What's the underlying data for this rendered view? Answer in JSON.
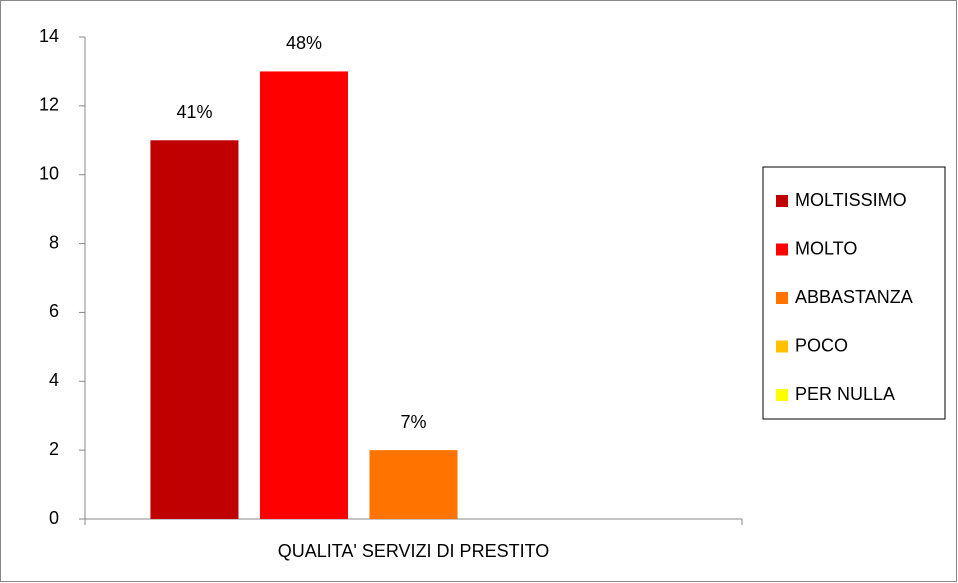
{
  "chart_data": {
    "type": "bar",
    "categories": [
      "QUALITA' SERVIZI DI PRESTITO"
    ],
    "series": [
      {
        "name": "MOLTISSIMO",
        "color": "#c00000",
        "values": [
          11
        ],
        "value_labels": [
          "41%"
        ]
      },
      {
        "name": "MOLTO",
        "color": "#ff0000",
        "values": [
          13
        ],
        "value_labels": [
          "48%"
        ]
      },
      {
        "name": "ABBASTANZA",
        "color": "#ff7300",
        "values": [
          2
        ],
        "value_labels": [
          "7%"
        ]
      },
      {
        "name": "POCO",
        "color": "#ffc000",
        "values": [
          0
        ]
      },
      {
        "name": "PER NULLA",
        "color": "#ffff00",
        "values": [
          0
        ]
      }
    ],
    "ylim": [
      0,
      14
    ],
    "yticks": [
      0,
      2,
      4,
      6,
      8,
      10,
      12,
      14
    ],
    "grid": false,
    "legend": "right"
  }
}
